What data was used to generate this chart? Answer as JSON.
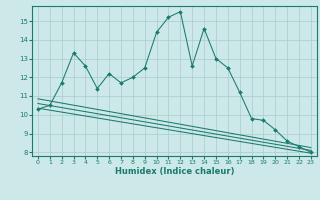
{
  "xlabel": "Humidex (Indice chaleur)",
  "bg_color": "#cce8e8",
  "grid_color": "#aacccc",
  "line_color": "#1a7a6e",
  "xlim": [
    -0.5,
    23.5
  ],
  "ylim": [
    7.8,
    15.8
  ],
  "xticks": [
    0,
    1,
    2,
    3,
    4,
    5,
    6,
    7,
    8,
    9,
    10,
    11,
    12,
    13,
    14,
    15,
    16,
    17,
    18,
    19,
    20,
    21,
    22,
    23
  ],
  "yticks": [
    8,
    9,
    10,
    11,
    12,
    13,
    14,
    15
  ],
  "series1_x": [
    0,
    1,
    2,
    3,
    4,
    5,
    6,
    7,
    8,
    9,
    10,
    11,
    12,
    13,
    14,
    15,
    16,
    17,
    18,
    19,
    20,
    21,
    22,
    23
  ],
  "series1_y": [
    10.3,
    10.5,
    11.7,
    13.3,
    12.6,
    11.4,
    12.2,
    11.7,
    12.0,
    12.5,
    14.4,
    15.2,
    15.5,
    12.6,
    14.6,
    13.0,
    12.5,
    11.2,
    9.8,
    9.7,
    9.2,
    8.6,
    8.3,
    8.0
  ],
  "series2_x": [
    0,
    23
  ],
  "series2_y": [
    10.85,
    8.25
  ],
  "series3_x": [
    0,
    23
  ],
  "series3_y": [
    10.6,
    8.1
  ],
  "series4_x": [
    0,
    23
  ],
  "series4_y": [
    10.35,
    7.95
  ]
}
